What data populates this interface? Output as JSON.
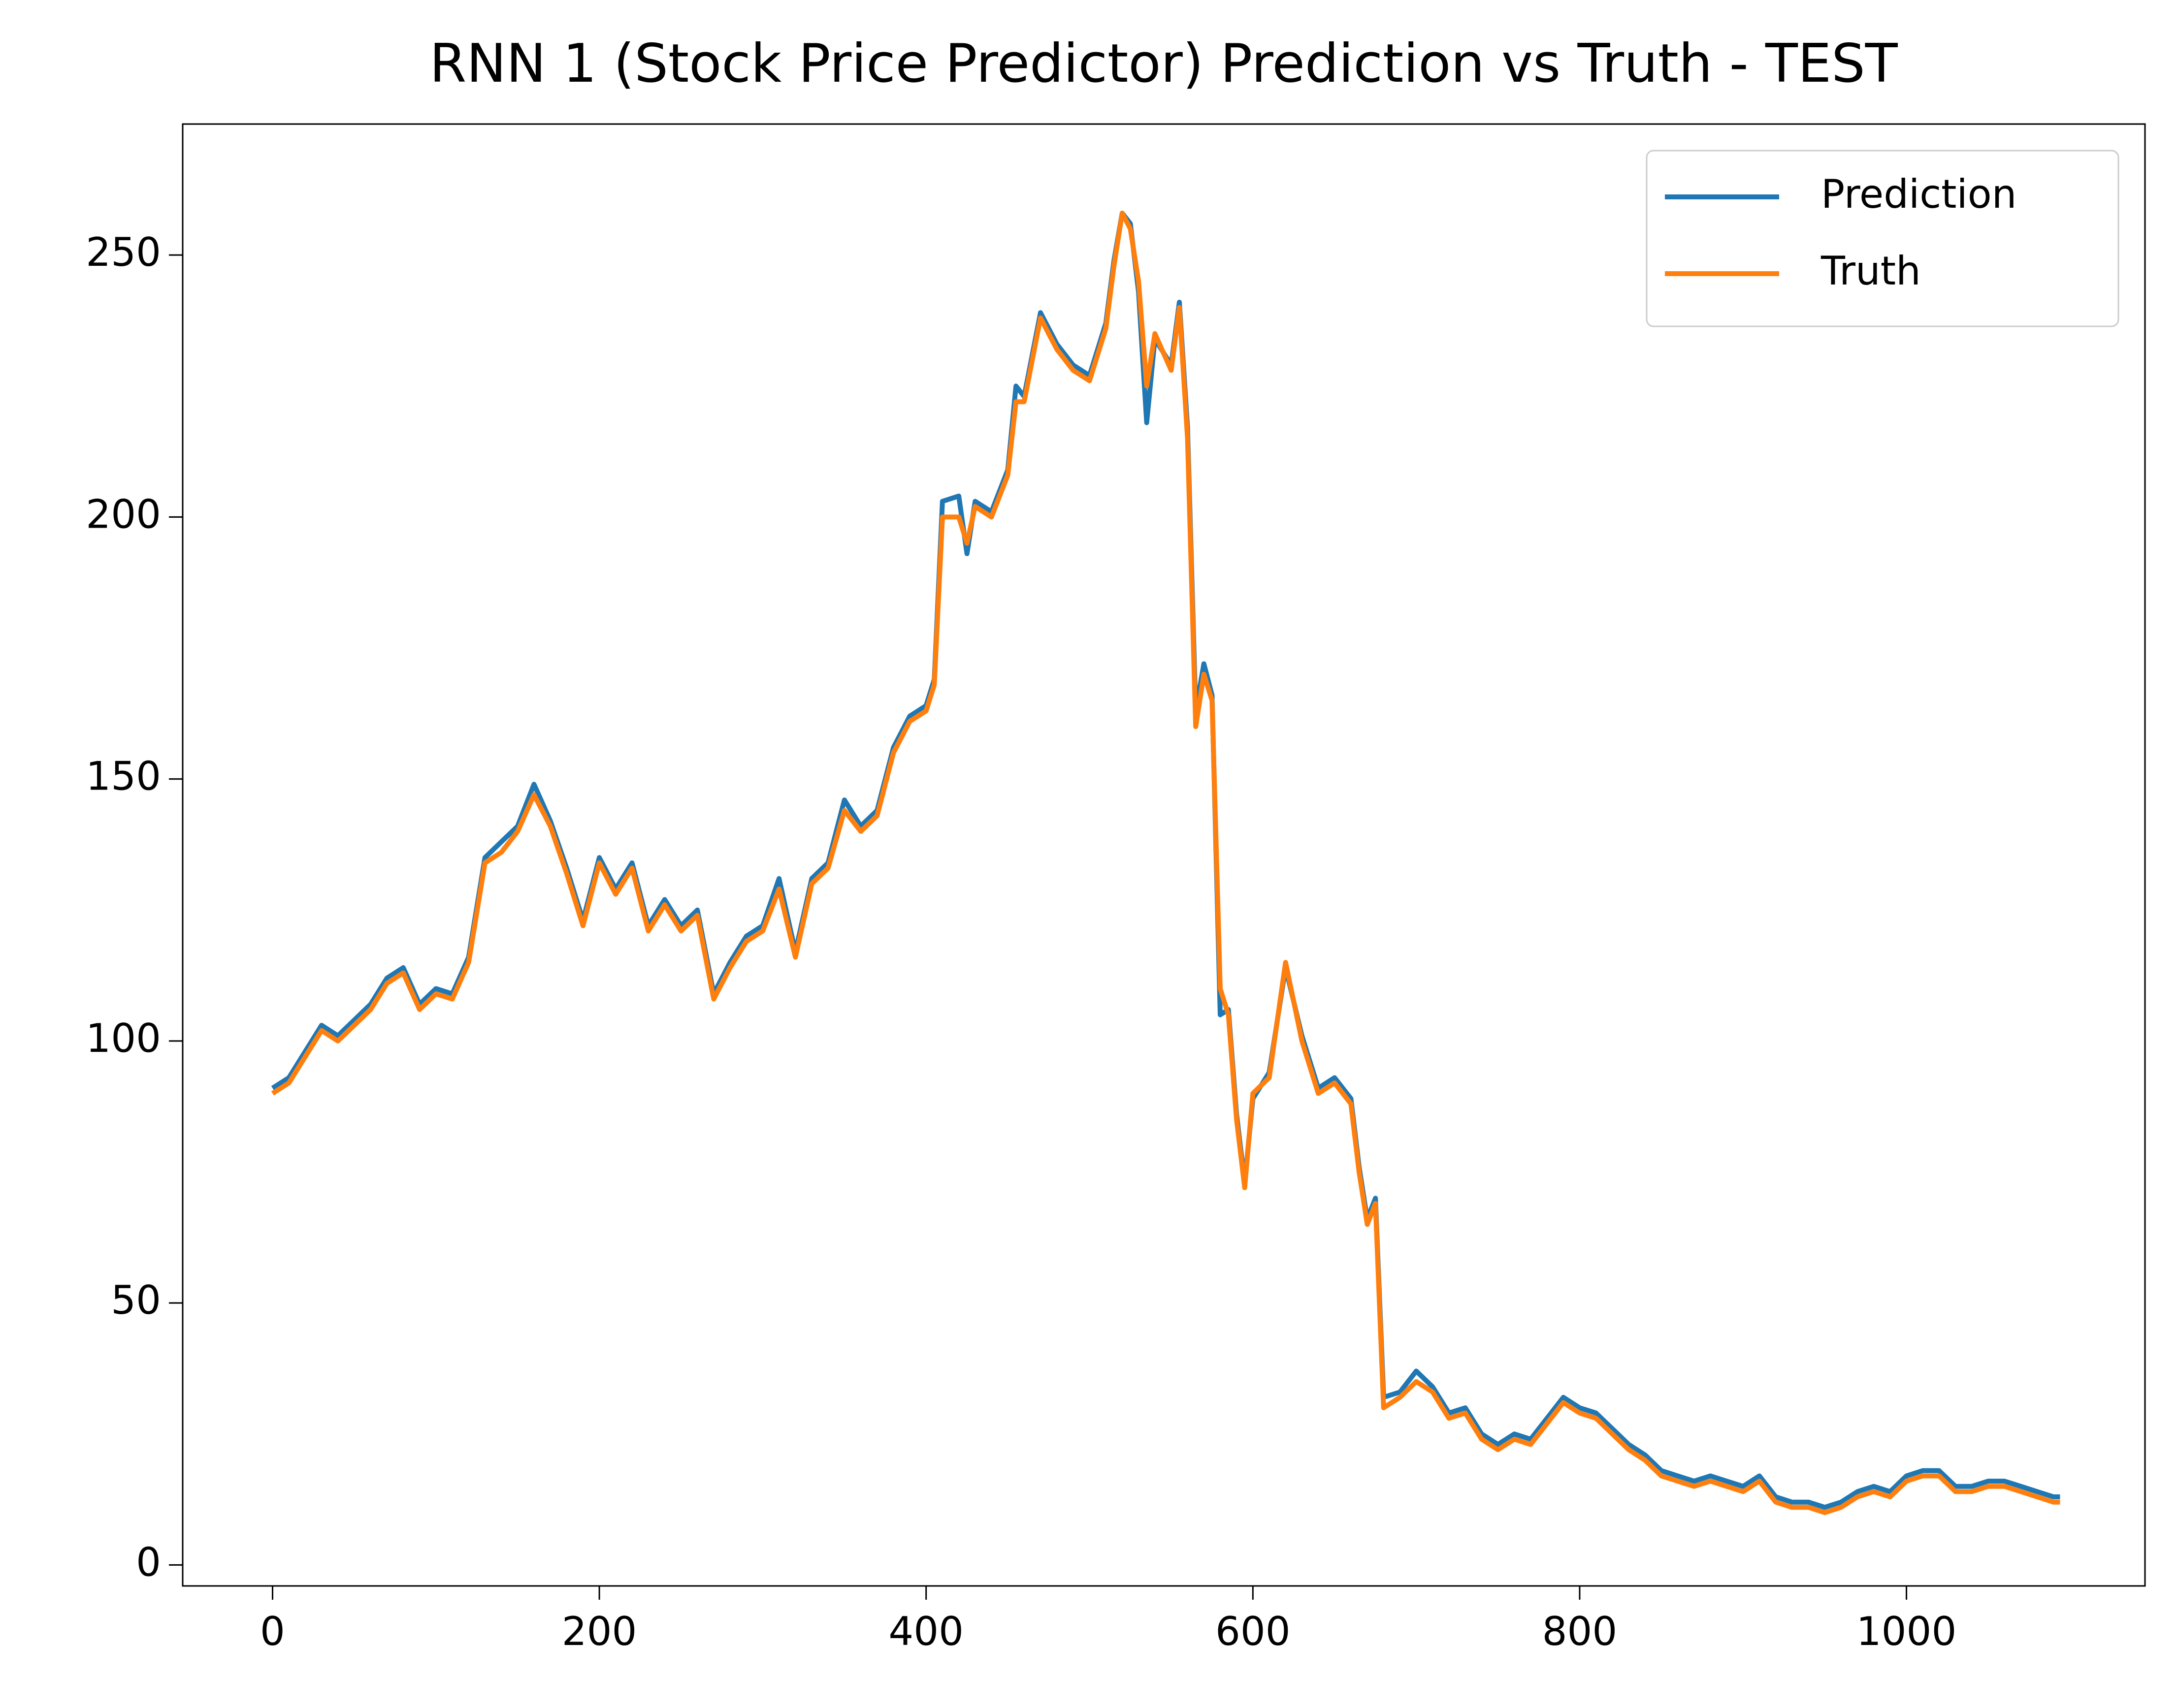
{
  "chart_data": {
    "type": "line",
    "title": "RNN 1 (Stock Price Predictor) Prediction vs Truth - TEST",
    "x": [
      0,
      10,
      20,
      30,
      40,
      50,
      60,
      70,
      80,
      90,
      100,
      110,
      120,
      130,
      140,
      150,
      160,
      170,
      180,
      190,
      200,
      210,
      220,
      230,
      240,
      250,
      260,
      270,
      280,
      290,
      300,
      310,
      320,
      330,
      340,
      350,
      360,
      370,
      380,
      390,
      400,
      405,
      410,
      420,
      425,
      430,
      440,
      450,
      455,
      460,
      470,
      480,
      490,
      500,
      510,
      515,
      520,
      525,
      530,
      535,
      540,
      550,
      555,
      560,
      565,
      570,
      575,
      580,
      585,
      590,
      595,
      600,
      610,
      620,
      630,
      640,
      650,
      660,
      665,
      670,
      675,
      680,
      690,
      700,
      710,
      720,
      730,
      740,
      750,
      760,
      770,
      780,
      790,
      800,
      810,
      820,
      830,
      840,
      850,
      860,
      870,
      880,
      890,
      900,
      910,
      920,
      930,
      940,
      950,
      960,
      970,
      980,
      990,
      1000,
      1010,
      1020,
      1030,
      1040,
      1050,
      1060,
      1070,
      1080,
      1090,
      1094
    ],
    "series": [
      {
        "name": "Prediction",
        "color": "#1f77b4",
        "values": [
          91,
          93,
          98,
          103,
          101,
          104,
          107,
          112,
          114,
          107,
          110,
          109,
          116,
          135,
          138,
          141,
          149,
          142,
          133,
          123,
          135,
          129,
          134,
          122,
          127,
          122,
          125,
          109,
          115,
          120,
          122,
          131,
          117,
          131,
          134,
          146,
          141,
          144,
          156,
          162,
          164,
          169,
          203,
          204,
          193,
          203,
          201,
          209,
          225,
          223,
          239,
          233,
          229,
          227,
          237,
          249,
          258,
          256,
          243,
          218,
          234,
          229,
          241,
          217,
          163,
          172,
          166,
          105,
          106,
          86,
          73,
          89,
          94,
          114,
          101,
          91,
          93,
          89,
          76,
          66,
          70,
          32,
          33,
          37,
          34,
          29,
          30,
          25,
          23,
          25,
          24,
          28,
          32,
          30,
          29,
          26,
          23,
          21,
          18,
          17,
          16,
          17,
          16,
          15,
          17,
          13,
          12,
          12,
          11,
          12,
          14,
          15,
          14,
          17,
          18,
          18,
          15,
          15,
          16,
          16,
          15,
          14,
          13,
          13
        ]
      },
      {
        "name": "Truth",
        "color": "#ff7f0e",
        "values": [
          90,
          92,
          97,
          102,
          100,
          103,
          106,
          111,
          113,
          106,
          109,
          108,
          115,
          134,
          136,
          140,
          147,
          141,
          132,
          122,
          134,
          128,
          133,
          121,
          126,
          121,
          124,
          108,
          114,
          119,
          121,
          129,
          116,
          130,
          133,
          144,
          140,
          143,
          155,
          161,
          163,
          168,
          200,
          200,
          195,
          202,
          200,
          208,
          222,
          222,
          238,
          232,
          228,
          226,
          236,
          248,
          258,
          255,
          245,
          225,
          235,
          228,
          240,
          215,
          160,
          170,
          165,
          110,
          105,
          85,
          72,
          90,
          93,
          115,
          100,
          90,
          92,
          88,
          75,
          65,
          69,
          30,
          32,
          35,
          33,
          28,
          29,
          24,
          22,
          24,
          23,
          27,
          31,
          29,
          28,
          25,
          22,
          20,
          17,
          16,
          15,
          16,
          15,
          14,
          16,
          12,
          11,
          11,
          10,
          11,
          13,
          14,
          13,
          16,
          17,
          17,
          14,
          14,
          15,
          15,
          14,
          13,
          12,
          12
        ]
      }
    ],
    "xlim": [
      -55,
      1146
    ],
    "ylim": [
      -4,
      275
    ],
    "xticks": [
      0,
      200,
      400,
      600,
      800,
      1000
    ],
    "yticks": [
      0,
      50,
      100,
      150,
      200,
      250
    ],
    "legend": "upper right"
  }
}
